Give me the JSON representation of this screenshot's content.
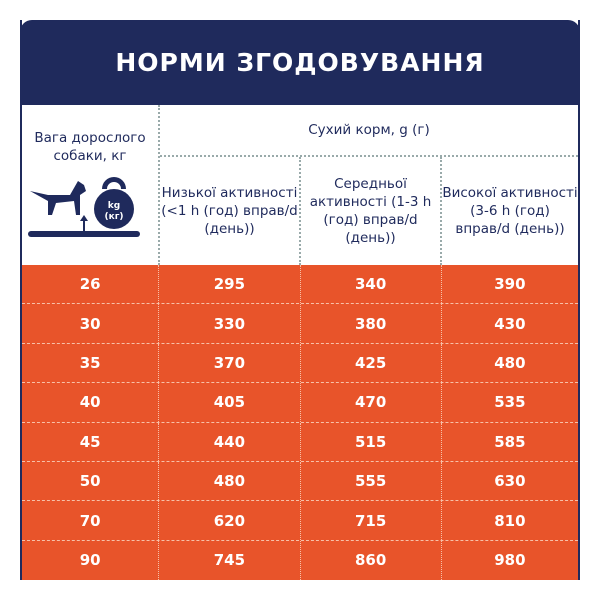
{
  "title": "НОРМИ ЗГОДОВУВАННЯ",
  "header": {
    "weight": "Вага дорослого собаки, кг",
    "dry_food": "Сухий корм, g (г)",
    "icon_label_1": "kg",
    "icon_label_2": "(кг)",
    "activity": [
      "Низької активності (<1 h (год) вправ/d (день))",
      "Середньої активності (1-3 h (год) вправ/d (день))",
      "Високої активності (3-6 h (год) вправ/d (день))"
    ]
  },
  "rows": [
    [
      "26",
      "295",
      "340",
      "390"
    ],
    [
      "30",
      "330",
      "380",
      "430"
    ],
    [
      "35",
      "370",
      "425",
      "480"
    ],
    [
      "40",
      "405",
      "470",
      "535"
    ],
    [
      "45",
      "440",
      "515",
      "585"
    ],
    [
      "50",
      "480",
      "555",
      "630"
    ],
    [
      "70",
      "620",
      "715",
      "810"
    ],
    [
      "90",
      "745",
      "860",
      "980"
    ]
  ],
  "colors": {
    "navy": "#1f2a5c",
    "orange": "#e8542a"
  }
}
